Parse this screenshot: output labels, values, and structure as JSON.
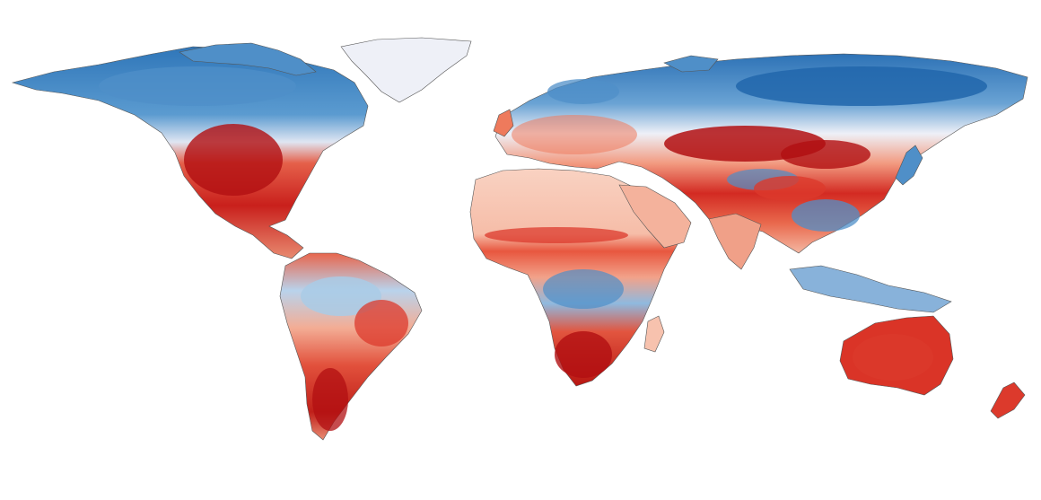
{
  "map": {
    "projection": "equirectangular",
    "legend": "none",
    "text_labels": "none",
    "color_scale": {
      "type": "diverging",
      "strong_cold": "#2166ac",
      "cold": "#4f8fc8",
      "light_cold": "#a9cbe6",
      "neutral": "#eef0f7",
      "light_warm": "#f7c2ae",
      "warm": "#ee7a5c",
      "hot": "#dc3a2c",
      "strong_hot": "#b10f12"
    },
    "ocean_color": "#ffffff",
    "coastline_color": "#555555"
  }
}
